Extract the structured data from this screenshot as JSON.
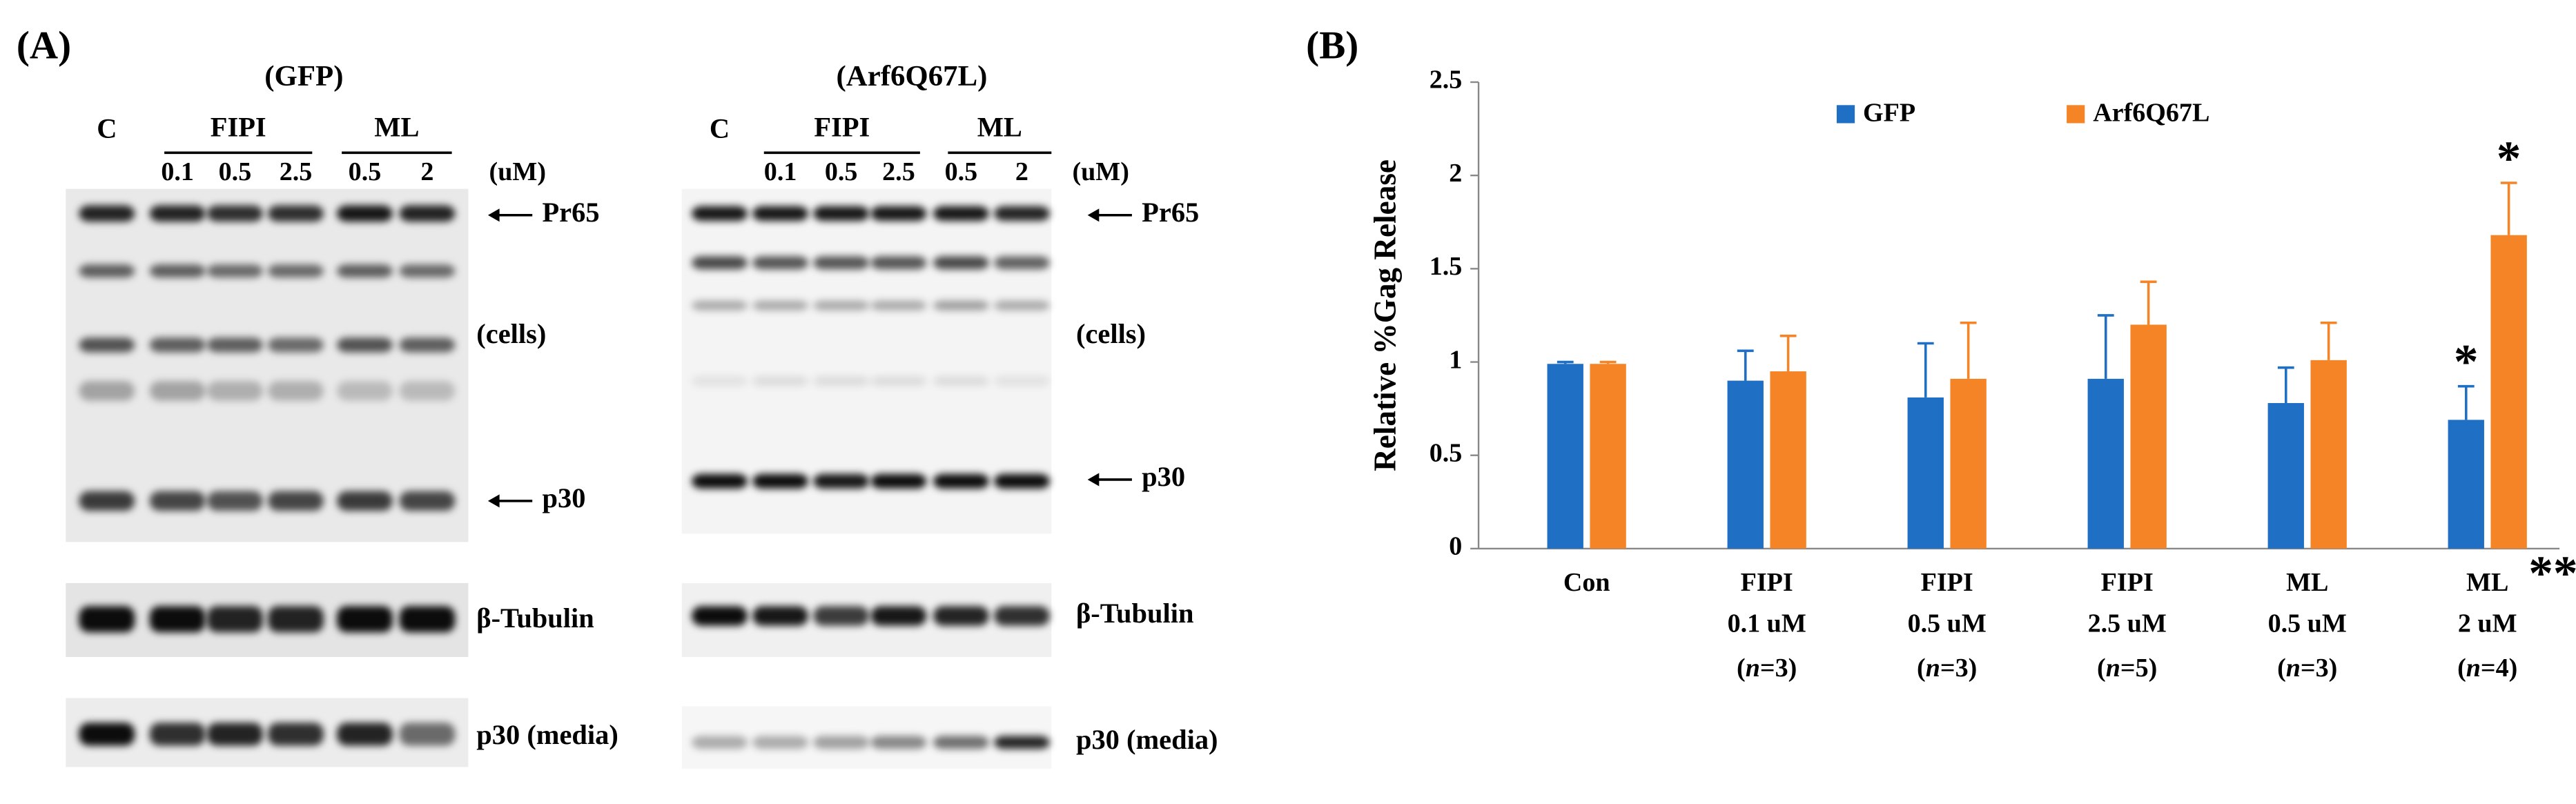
{
  "panel_a": {
    "label": "(A)",
    "unit": "(uM)",
    "blots": [
      {
        "title": "(GFP)",
        "control": "C",
        "groups": [
          {
            "name": "FIPI",
            "doses": [
              "0.1",
              "0.5",
              "2.5"
            ]
          },
          {
            "name": "ML",
            "doses": [
              "0.5",
              "2"
            ]
          }
        ],
        "labels": [
          "Pr65",
          "(cells)",
          "p30",
          "β-Tubulin",
          "p30 (media)"
        ]
      },
      {
        "title": "(Arf6Q67L)",
        "control": "C",
        "groups": [
          {
            "name": "FIPI",
            "doses": [
              "0.1",
              "0.5",
              "2.5"
            ]
          },
          {
            "name": "ML",
            "doses": [
              "0.5",
              "2"
            ]
          }
        ],
        "labels": [
          "Pr65",
          "(cells)",
          "p30",
          "β-Tubulin",
          "p30 (media)"
        ]
      }
    ]
  },
  "chart_data": {
    "type": "bar",
    "panel_label": "(B)",
    "ylabel": "Relative %Gag Release",
    "categories": [
      [
        "Con"
      ],
      [
        "FIPI",
        "0.1 uM"
      ],
      [
        "FIPI",
        "0.5 uM"
      ],
      [
        "FIPI",
        "2.5 uM"
      ],
      [
        "ML",
        "0.5 uM"
      ],
      [
        "ML",
        "2 uM"
      ]
    ],
    "sample_sizes": [
      null,
      "(n=3)",
      "(n=3)",
      "(n=5)",
      "(n=3)",
      "(n=4)"
    ],
    "category_marks": [
      null,
      null,
      null,
      null,
      null,
      "**"
    ],
    "series": [
      {
        "name": "GFP",
        "color": "#1f6fc5",
        "values": [
          0.99,
          0.9,
          0.81,
          0.91,
          0.78,
          0.69
        ],
        "errors": [
          0.01,
          0.16,
          0.29,
          0.34,
          0.19,
          0.18
        ],
        "annotations": [
          null,
          null,
          null,
          null,
          null,
          "*"
        ]
      },
      {
        "name": "Arf6Q67L",
        "color": "#f58426",
        "values": [
          0.99,
          0.95,
          0.91,
          1.2,
          1.01,
          1.68
        ],
        "errors": [
          0.01,
          0.19,
          0.3,
          0.23,
          0.2,
          0.28
        ],
        "annotations": [
          null,
          null,
          null,
          null,
          null,
          "*"
        ]
      }
    ],
    "ylim": [
      0,
      2.5
    ],
    "yticks": [
      0,
      0.5,
      1,
      1.5,
      2,
      2.5
    ],
    "grid": false,
    "legend": "top"
  }
}
